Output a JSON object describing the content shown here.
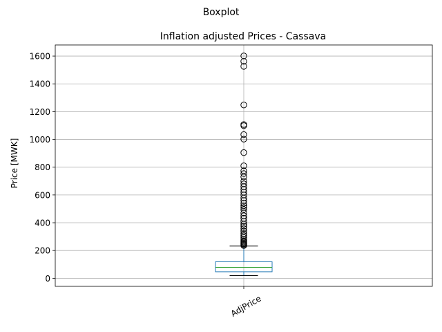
{
  "suptitle": "Boxplot",
  "chart_data": {
    "type": "boxplot",
    "title": "Inflation adjusted Prices - Cassava",
    "xlabel": "",
    "ylabel": "Price [MWK]",
    "categories": [
      "AdjPrice"
    ],
    "ylim": [
      -58,
      1680
    ],
    "yticks": [
      0,
      200,
      400,
      600,
      800,
      1000,
      1200,
      1400,
      1600
    ],
    "grid": true,
    "box": {
      "whisker_low": 19,
      "q1": 47,
      "median": 79,
      "q3": 119,
      "whisker_high": 232,
      "outliers": [
        1601,
        1562,
        1526,
        1248,
        1107,
        1099,
        1035,
        1002,
        905,
        810,
        774,
        754,
        730,
        700,
        680,
        660,
        640,
        620,
        600,
        578,
        560,
        540,
        522,
        510,
        495,
        470,
        450,
        432,
        410,
        390,
        375,
        358,
        340,
        322,
        308,
        295,
        282,
        270,
        262,
        255,
        248,
        242,
        236
      ]
    },
    "colors": {
      "box": "#1f77b4",
      "median": "#2ca02c",
      "whisker": "#000000",
      "grid": "#b0b0b0",
      "outlier": "#000000"
    }
  }
}
